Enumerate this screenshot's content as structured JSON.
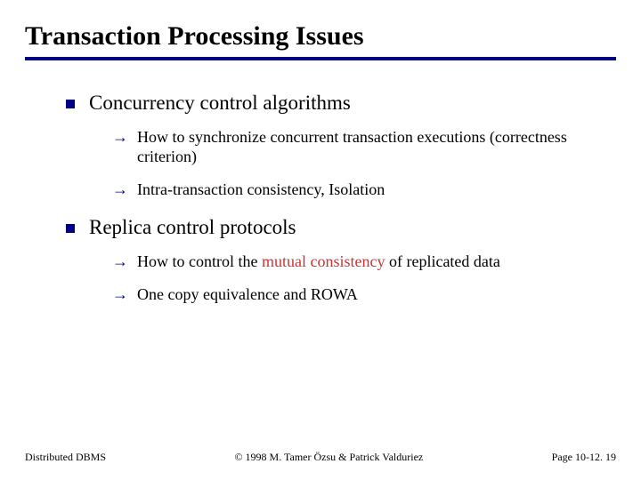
{
  "colors": {
    "accent": "#000080",
    "highlight": "#cc3333",
    "text": "#000000",
    "background": "#ffffff"
  },
  "typography": {
    "title_fontsize": 30,
    "l1_fontsize": 23,
    "l2_fontsize": 18,
    "footer_fontsize": 12,
    "font_family": "Times New Roman"
  },
  "title": "Transaction Processing Issues",
  "sections": [
    {
      "heading": "Concurrency control algorithms",
      "items": [
        {
          "pre": "How to synchronize concurrent transaction executions (correctness criterion)"
        },
        {
          "pre": "Intra-transaction consistency, Isolation"
        }
      ]
    },
    {
      "heading": "Replica control protocols",
      "items": [
        {
          "pre": "How to control the ",
          "hl": "mutual consistency",
          "post": " of replicated data"
        },
        {
          "pre": "One copy equivalence and ROWA"
        }
      ]
    }
  ],
  "footer": {
    "left": "Distributed DBMS",
    "center": "© 1998 M. Tamer Özsu & Patrick Valduriez",
    "right": "Page 10-12. 19"
  }
}
